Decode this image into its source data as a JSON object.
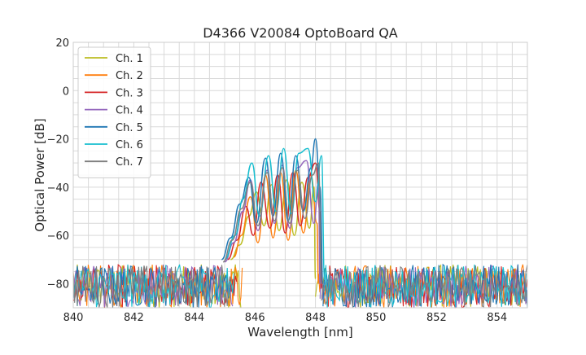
{
  "chart_data": {
    "type": "line",
    "title": "D4366 V20084 OptoBoard QA",
    "xlabel": "Wavelength [nm]",
    "ylabel": "Optical Power [dB]",
    "xlim": [
      840,
      855
    ],
    "ylim": [
      -90,
      20
    ],
    "xticks": [
      840,
      842,
      844,
      846,
      848,
      850,
      852,
      854
    ],
    "yticks": [
      20,
      0,
      -20,
      -40,
      -60,
      -80
    ],
    "xtick_labels": [
      "840",
      "842",
      "844",
      "846",
      "848",
      "850",
      "852",
      "854"
    ],
    "ytick_labels": [
      "20",
      "0",
      "−20",
      "−40",
      "−60",
      "−80"
    ],
    "grid": true,
    "legend_position": "top-left",
    "noise_floor": -90,
    "noise_top": -72,
    "series": [
      {
        "name": "Ch. 1",
        "color": "#bcbd22",
        "edges": [
          845.55,
          848.0
        ],
        "points": [
          [
            845.2,
            -70
          ],
          [
            845.5,
            -64
          ],
          [
            845.8,
            -52
          ],
          [
            846.05,
            -42
          ],
          [
            846.3,
            -56
          ],
          [
            846.55,
            -39
          ],
          [
            846.8,
            -58
          ],
          [
            847.05,
            -37
          ],
          [
            847.3,
            -60
          ],
          [
            847.55,
            -38
          ],
          [
            847.8,
            -57
          ],
          [
            847.95,
            -40
          ],
          [
            848.0,
            -78
          ]
        ]
      },
      {
        "name": "Ch. 2",
        "color": "#ff7f0e",
        "edges": [
          845.6,
          848.1
        ],
        "points": [
          [
            845.3,
            -69
          ],
          [
            845.55,
            -60
          ],
          [
            845.85,
            -44
          ],
          [
            846.1,
            -63
          ],
          [
            846.35,
            -35
          ],
          [
            846.6,
            -61
          ],
          [
            846.85,
            -34
          ],
          [
            847.1,
            -62
          ],
          [
            847.35,
            -33
          ],
          [
            847.6,
            -59
          ],
          [
            847.85,
            -35
          ],
          [
            848.05,
            -55
          ],
          [
            848.1,
            -80
          ]
        ]
      },
      {
        "name": "Ch. 3",
        "color": "#d62728",
        "edges": [
          845.4,
          848.2
        ],
        "points": [
          [
            845.1,
            -70
          ],
          [
            845.4,
            -62
          ],
          [
            845.7,
            -48
          ],
          [
            845.95,
            -60
          ],
          [
            846.2,
            -38
          ],
          [
            846.5,
            -57
          ],
          [
            846.75,
            -35
          ],
          [
            847.0,
            -59
          ],
          [
            847.25,
            -34
          ],
          [
            847.5,
            -56
          ],
          [
            847.75,
            -36
          ],
          [
            848.0,
            -30
          ],
          [
            848.15,
            -50
          ],
          [
            848.2,
            -82
          ]
        ]
      },
      {
        "name": "Ch. 4",
        "color": "#9467bd",
        "edges": [
          845.3,
          848.15
        ],
        "points": [
          [
            845.0,
            -71
          ],
          [
            845.3,
            -63
          ],
          [
            845.6,
            -50
          ],
          [
            845.85,
            -37
          ],
          [
            846.1,
            -58
          ],
          [
            846.4,
            -33
          ],
          [
            846.65,
            -55
          ],
          [
            846.9,
            -31
          ],
          [
            847.15,
            -57
          ],
          [
            847.4,
            -32
          ],
          [
            847.7,
            -29
          ],
          [
            847.95,
            -55
          ],
          [
            848.1,
            -38
          ],
          [
            848.15,
            -80
          ]
        ]
      },
      {
        "name": "Ch. 5",
        "color": "#1f77b4",
        "edges": [
          845.2,
          848.25
        ],
        "points": [
          [
            844.9,
            -70
          ],
          [
            845.2,
            -61
          ],
          [
            845.5,
            -47
          ],
          [
            845.8,
            -36
          ],
          [
            846.05,
            -55
          ],
          [
            846.35,
            -28
          ],
          [
            846.6,
            -52
          ],
          [
            846.85,
            -26
          ],
          [
            847.1,
            -54
          ],
          [
            847.35,
            -27
          ],
          [
            847.6,
            -50
          ],
          [
            847.85,
            -32
          ],
          [
            848.0,
            -20
          ],
          [
            848.15,
            -40
          ],
          [
            848.25,
            -80
          ]
        ]
      },
      {
        "name": "Ch. 6",
        "color": "#17becf",
        "edges": [
          845.35,
          848.3
        ],
        "points": [
          [
            845.0,
            -70
          ],
          [
            845.35,
            -60
          ],
          [
            845.6,
            -45
          ],
          [
            845.9,
            -30
          ],
          [
            846.15,
            -52
          ],
          [
            846.45,
            -27
          ],
          [
            846.7,
            -50
          ],
          [
            846.95,
            -24
          ],
          [
            847.2,
            -51
          ],
          [
            847.45,
            -26
          ],
          [
            847.75,
            -24
          ],
          [
            848.0,
            -46
          ],
          [
            848.2,
            -27
          ],
          [
            848.3,
            -78
          ]
        ]
      },
      {
        "name": "Ch. 7",
        "color": "#7f7f7f",
        "edges": [
          845.25,
          848.2
        ],
        "points": [
          [
            844.95,
            -71
          ],
          [
            845.25,
            -62
          ],
          [
            845.55,
            -49
          ],
          [
            845.85,
            -38
          ],
          [
            846.1,
            -56
          ],
          [
            846.4,
            -34
          ],
          [
            846.65,
            -54
          ],
          [
            846.9,
            -32
          ],
          [
            847.15,
            -55
          ],
          [
            847.4,
            -33
          ],
          [
            847.65,
            -53
          ],
          [
            847.9,
            -35
          ],
          [
            848.1,
            -30
          ],
          [
            848.2,
            -80
          ]
        ]
      }
    ]
  }
}
